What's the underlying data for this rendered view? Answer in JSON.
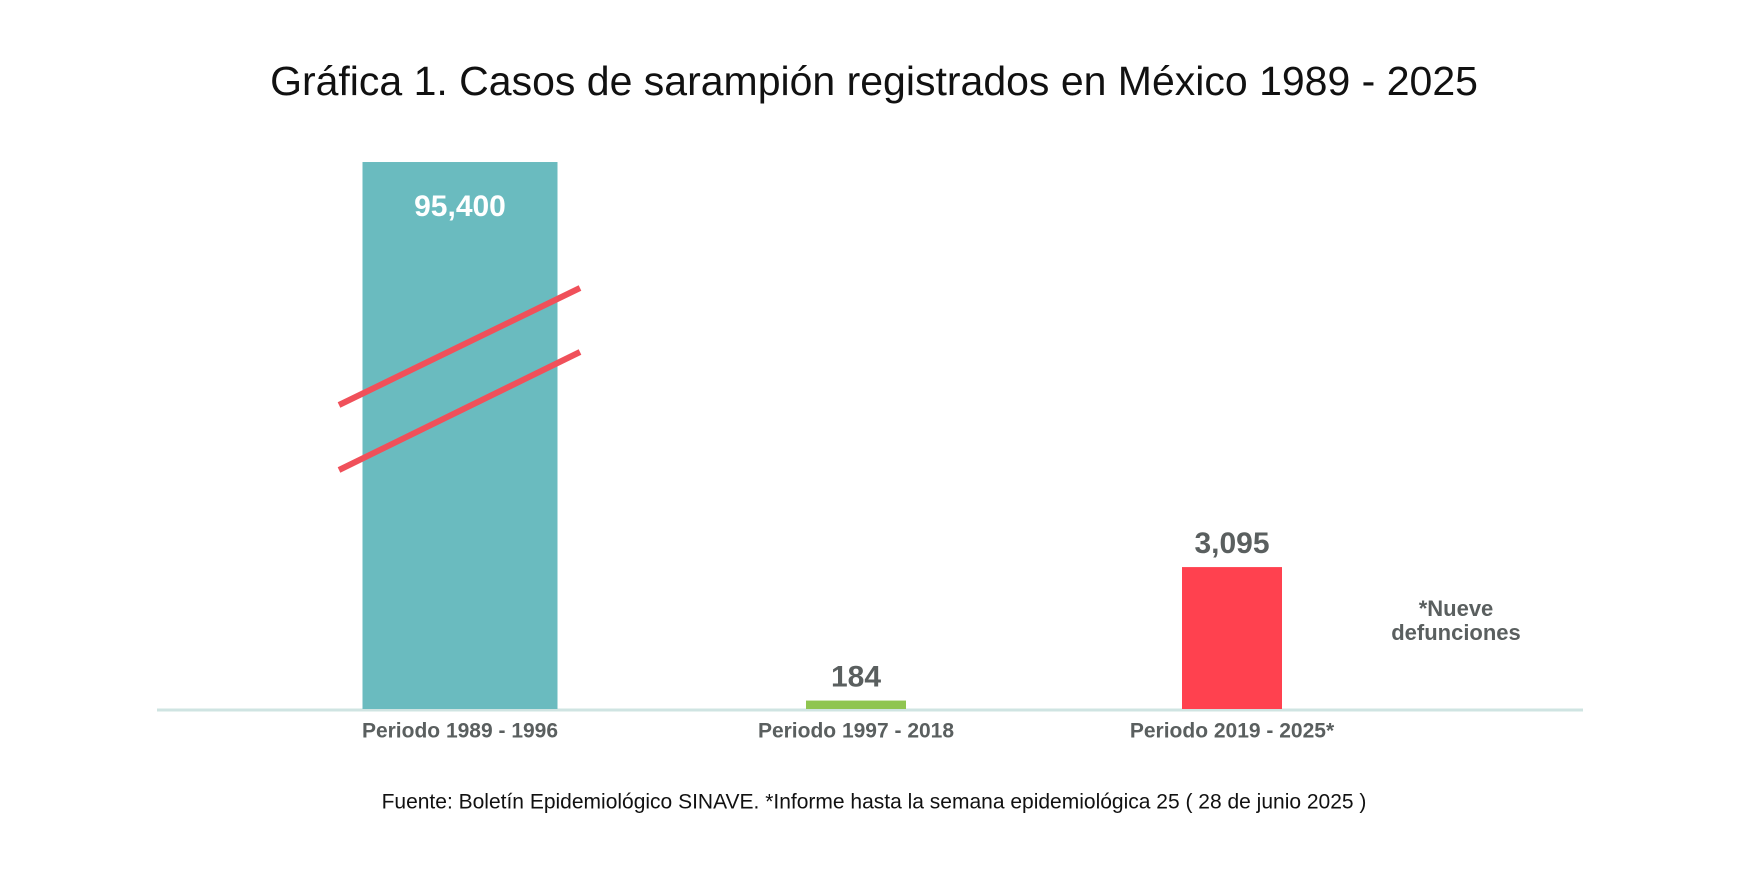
{
  "chart_data": {
    "type": "bar",
    "title": "Gráfica 1. Casos de sarampión registrados en México 1989 - 2025",
    "categories": [
      "Periodo 1989 - 1996",
      "Periodo 1997 - 2018",
      "Periodo 2019 - 2025*"
    ],
    "values": [
      95400,
      184,
      3095
    ],
    "value_labels": [
      "95,400",
      "184",
      "3,095"
    ],
    "colors": [
      "#6abbbf",
      "#8fc550",
      "#ff414f"
    ],
    "ylim": [
      0,
      96000
    ],
    "ybreak": [
      8000,
      90000
    ],
    "annotation": [
      "*Nueve",
      "defunciones"
    ],
    "source": "Fuente: Boletín Epidemiológico SINAVE. *Informe hasta la semana epidemiológica 25 ( 28 de junio 2025 )"
  }
}
